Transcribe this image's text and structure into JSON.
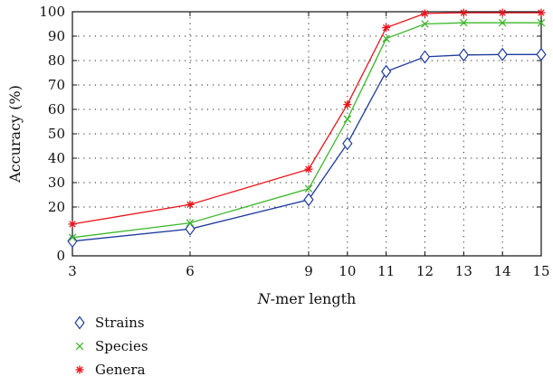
{
  "chart_data": {
    "type": "line",
    "xlabel_italic": "N",
    "xlabel_rest": "-mer length",
    "ylabel": "Accuracy (%)",
    "x": [
      3,
      6,
      9,
      10,
      11,
      12,
      13,
      14,
      15
    ],
    "xticks": [
      3,
      6,
      9,
      10,
      11,
      12,
      13,
      14,
      15
    ],
    "yticks": [
      0,
      20,
      30,
      40,
      50,
      60,
      70,
      80,
      90,
      100
    ],
    "xlim": [
      3,
      15
    ],
    "ylim": [
      0,
      100
    ],
    "y_break_below": 20,
    "grid": true,
    "legend_position": "bottom-left",
    "series": [
      {
        "name": "Strains",
        "marker": "diamond",
        "color": "#1f3a9e",
        "values": [
          6,
          11,
          23,
          46,
          75.5,
          81.5,
          82.3,
          82.5,
          82.5
        ]
      },
      {
        "name": "Species",
        "marker": "x",
        "color": "#3cb82a",
        "values": [
          7.5,
          13.5,
          27.5,
          56,
          89,
          95,
          95.5,
          95.5,
          95.5
        ]
      },
      {
        "name": "Genera",
        "marker": "star",
        "color": "#e8141c",
        "values": [
          13,
          21,
          35.5,
          62,
          93.5,
          99.3,
          99.6,
          99.6,
          99.6
        ]
      }
    ]
  }
}
